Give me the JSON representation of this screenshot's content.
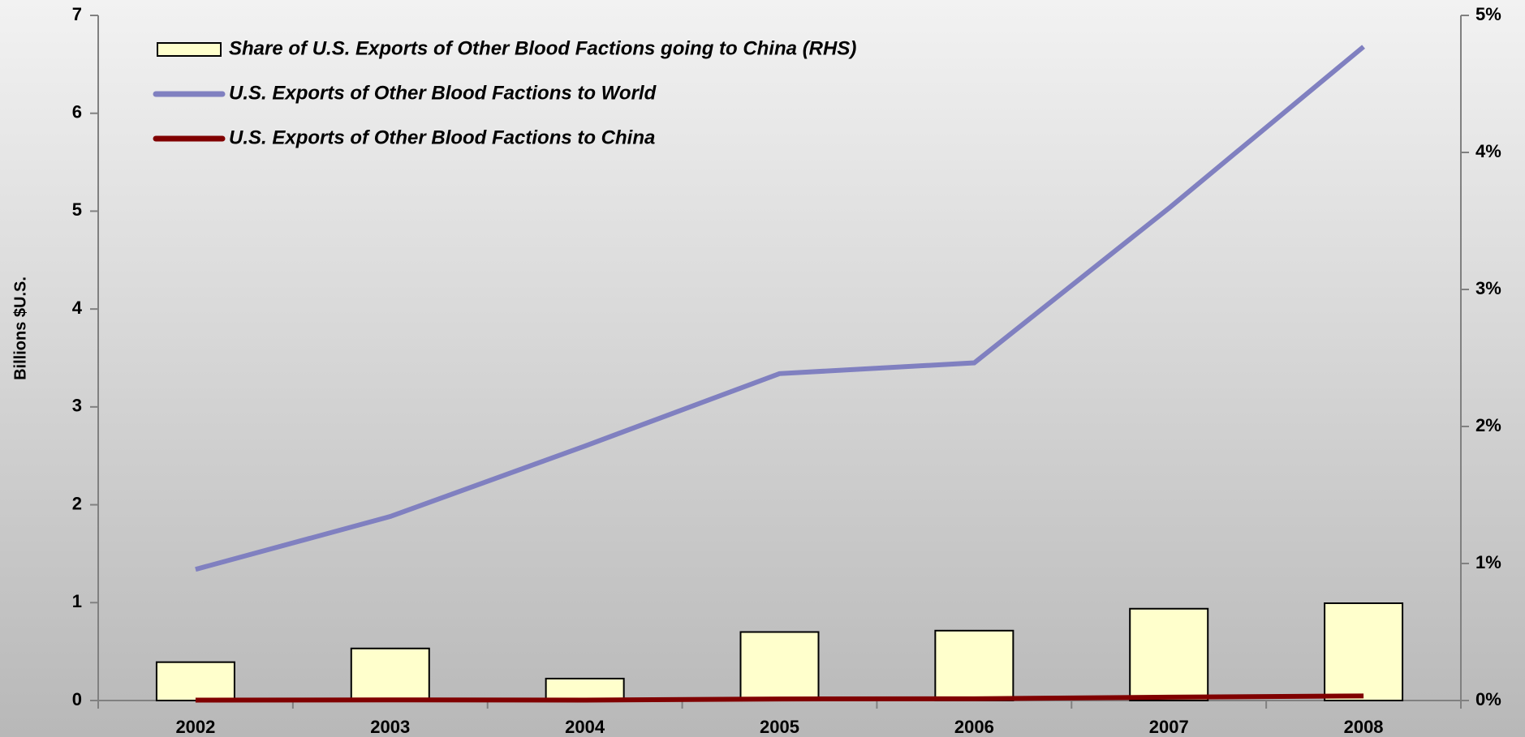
{
  "chart_data": {
    "type": "bar-line",
    "y_label": "Billions $U.S.",
    "categories": [
      "2002",
      "2003",
      "2004",
      "2005",
      "2006",
      "2007",
      "2008"
    ],
    "series": [
      {
        "name": "Share of U.S. Exports of Other Blood Factions going to China (RHS)",
        "type": "bar",
        "axis": "y2",
        "color": "#ffffcc",
        "values": [
          0.28,
          0.38,
          0.16,
          0.5,
          0.51,
          0.67,
          0.71
        ]
      },
      {
        "name": "U.S. Exports of Other Blood Factions to World",
        "type": "line",
        "color": "#8080c0",
        "values": [
          1.34,
          1.88,
          2.6,
          3.34,
          3.45,
          5.03,
          6.68
        ]
      },
      {
        "name": "U.S. Exports of Other Blood Factions to China",
        "type": "line",
        "color": "#800000",
        "values": [
          0.004,
          0.006,
          0.004,
          0.016,
          0.018,
          0.034,
          0.047
        ]
      }
    ],
    "ylim": [
      0,
      7
    ],
    "yticks": [
      0,
      1,
      2,
      3,
      4,
      5,
      6,
      7
    ],
    "y2lim": [
      0,
      5
    ],
    "y2ticks": [
      {
        "value": 0,
        "label": "0%"
      },
      {
        "value": 1,
        "label": "1%"
      },
      {
        "value": 2,
        "label": "2%"
      },
      {
        "value": 3,
        "label": "3%"
      },
      {
        "value": 4,
        "label": "4%"
      },
      {
        "value": 5,
        "label": "5%"
      }
    ]
  }
}
